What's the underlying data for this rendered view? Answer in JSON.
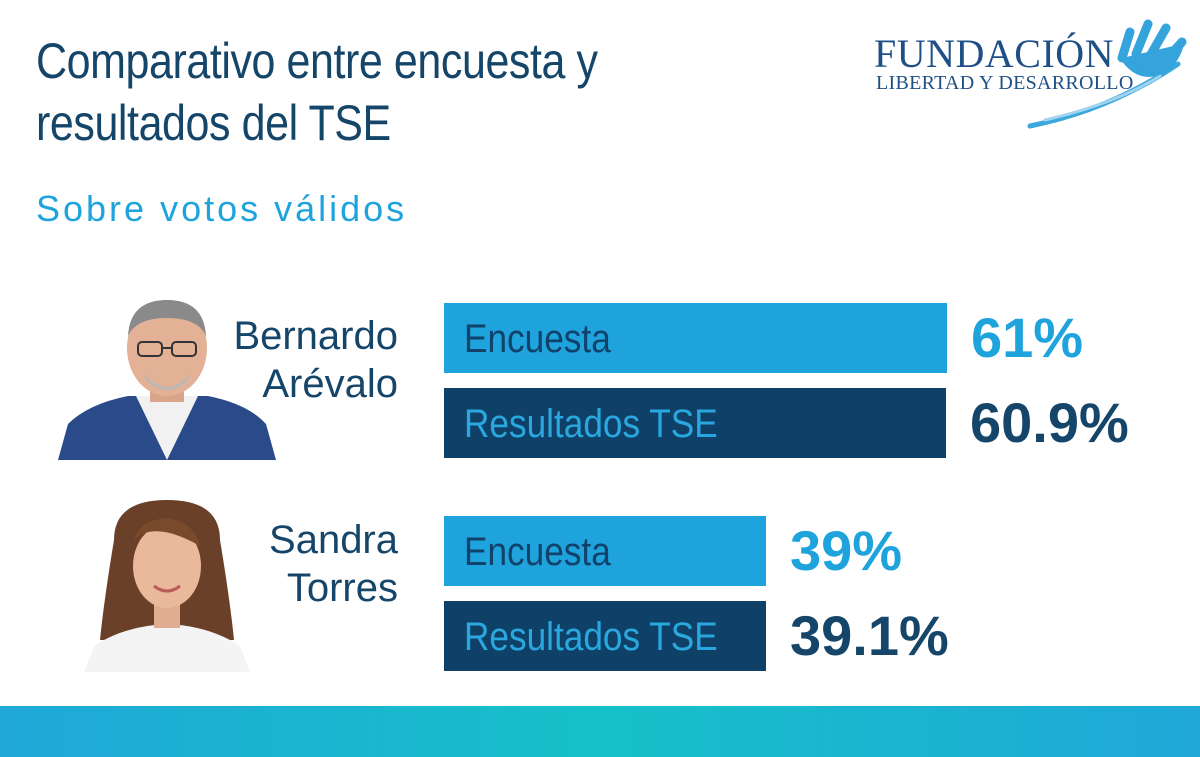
{
  "header": {
    "title_line1": "Comparativo entre encuesta y",
    "title_line2": "resultados del TSE",
    "subtitle": "Sobre votos válidos"
  },
  "logo": {
    "line1": "FUNDACIÓN",
    "line2": "LIBERTAD Y DESARROLLO"
  },
  "colors": {
    "survey": "#1fa3dc",
    "result": "#0f4168",
    "title": "#15466a"
  },
  "chart_data": {
    "type": "bar",
    "orientation": "horizontal",
    "title": "Comparativo entre encuesta y resultados del TSE",
    "subtitle": "Sobre votos válidos",
    "categories": [
      "Bernardo Arévalo",
      "Sandra Torres"
    ],
    "series": [
      {
        "name": "Encuesta",
        "values": [
          61,
          39
        ],
        "labels": [
          "61%",
          "39%"
        ]
      },
      {
        "name": "Resultados TSE",
        "values": [
          60.9,
          39.1
        ],
        "labels": [
          "60.9%",
          "39.1%"
        ]
      }
    ],
    "candidates": [
      {
        "first": "Bernardo",
        "last": "Arévalo",
        "survey_label": "Encuesta",
        "survey_value": "61%",
        "result_label": "Resultados TSE",
        "result_value": "60.9%"
      },
      {
        "first": "Sandra",
        "last": "Torres",
        "survey_label": "Encuesta",
        "survey_value": "39%",
        "result_label": "Resultados TSE",
        "result_value": "39.1%"
      }
    ]
  }
}
